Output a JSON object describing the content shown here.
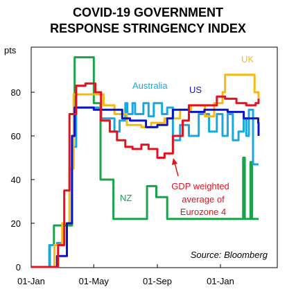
{
  "title_line1": "COVID-19 GOVERNMENT",
  "title_line2": "RESPONSE STRINGENCY INDEX",
  "chart_data": {
    "type": "line",
    "ylabel": "pts",
    "xlabel": "",
    "x_unit": "date",
    "xlim": [
      "2020-01-01",
      "2021-03-31"
    ],
    "ylim": [
      0,
      100
    ],
    "y_ticks": [
      0,
      20,
      40,
      60,
      80
    ],
    "x_ticks": [
      {
        "date": "2020-01-01",
        "label": "01-Jan"
      },
      {
        "date": "2020-05-01",
        "label": "01-May"
      },
      {
        "date": "2020-09-01",
        "label": "01-Sep"
      },
      {
        "date": "2021-01-01",
        "label": "01-Jan"
      }
    ],
    "grid": false,
    "source": "Source: Bloomberg",
    "annotations": [
      "GDP weighted",
      "average of",
      "Eurozone 4"
    ],
    "series": [
      {
        "name": "NZ",
        "color": "#1aa34a",
        "points": [
          [
            "2020-01-01",
            0
          ],
          [
            "2020-02-01",
            0
          ],
          [
            "2020-02-06",
            10
          ],
          [
            "2020-02-14",
            19
          ],
          [
            "2020-03-15",
            19
          ],
          [
            "2020-03-20",
            60
          ],
          [
            "2020-03-25",
            96
          ],
          [
            "2020-04-27",
            96
          ],
          [
            "2020-05-01",
            75
          ],
          [
            "2020-05-14",
            40
          ],
          [
            "2020-06-08",
            22
          ],
          [
            "2020-07-10",
            22
          ],
          [
            "2020-08-12",
            37
          ],
          [
            "2020-08-30",
            32
          ],
          [
            "2020-09-20",
            22
          ],
          [
            "2020-10-05",
            22
          ],
          [
            "2020-11-30",
            22
          ],
          [
            "2021-01-10",
            22
          ],
          [
            "2021-02-14",
            50
          ],
          [
            "2021-02-17",
            22
          ],
          [
            "2021-02-28",
            48
          ],
          [
            "2021-03-03",
            22
          ],
          [
            "2021-03-31",
            22
          ]
        ]
      },
      {
        "name": "Australia",
        "color": "#19a7de",
        "points": [
          [
            "2020-01-01",
            0
          ],
          [
            "2020-02-01",
            0
          ],
          [
            "2020-02-05",
            10
          ],
          [
            "2020-02-20",
            11
          ],
          [
            "2020-03-05",
            20
          ],
          [
            "2020-03-20",
            55
          ],
          [
            "2020-03-28",
            73
          ],
          [
            "2020-05-05",
            73
          ],
          [
            "2020-05-15",
            68
          ],
          [
            "2020-06-10",
            62
          ],
          [
            "2020-06-20",
            67
          ],
          [
            "2020-07-01",
            75
          ],
          [
            "2020-07-05",
            70
          ],
          [
            "2020-07-15",
            75
          ],
          [
            "2020-07-20",
            70
          ],
          [
            "2020-08-05",
            75
          ],
          [
            "2020-08-15",
            69
          ],
          [
            "2020-08-25",
            75
          ],
          [
            "2020-09-10",
            70
          ],
          [
            "2020-09-20",
            73
          ],
          [
            "2020-10-01",
            58
          ],
          [
            "2020-10-15",
            65
          ],
          [
            "2020-11-01",
            60
          ],
          [
            "2020-11-20",
            70
          ],
          [
            "2020-12-10",
            62
          ],
          [
            "2020-12-25",
            70
          ],
          [
            "2021-01-05",
            60
          ],
          [
            "2021-01-15",
            70
          ],
          [
            "2021-01-25",
            58
          ],
          [
            "2021-02-05",
            62
          ],
          [
            "2021-02-15",
            68
          ],
          [
            "2021-02-20",
            60
          ],
          [
            "2021-02-25",
            72
          ],
          [
            "2021-03-05",
            47
          ],
          [
            "2021-03-31",
            47
          ]
        ]
      },
      {
        "name": "UK",
        "color": "#f6b914",
        "points": [
          [
            "2020-01-01",
            0
          ],
          [
            "2020-02-01",
            0
          ],
          [
            "2020-02-15",
            10
          ],
          [
            "2020-03-01",
            20
          ],
          [
            "2020-03-15",
            45
          ],
          [
            "2020-03-23",
            79
          ],
          [
            "2020-05-11",
            79
          ],
          [
            "2020-05-20",
            74
          ],
          [
            "2020-06-10",
            70
          ],
          [
            "2020-07-04",
            65
          ],
          [
            "2020-08-01",
            64
          ],
          [
            "2020-08-20",
            66
          ],
          [
            "2020-09-15",
            68
          ],
          [
            "2020-10-01",
            68
          ],
          [
            "2020-10-15",
            72
          ],
          [
            "2020-11-05",
            74
          ],
          [
            "2020-12-02",
            69
          ],
          [
            "2020-12-20",
            75
          ],
          [
            "2021-01-05",
            80
          ],
          [
            "2021-01-10",
            88
          ],
          [
            "2021-02-20",
            88
          ],
          [
            "2021-03-08",
            80
          ],
          [
            "2021-03-31",
            77
          ]
        ]
      },
      {
        "name": "US",
        "color": "#0a14c8",
        "points": [
          [
            "2020-01-01",
            0
          ],
          [
            "2020-02-01",
            0
          ],
          [
            "2020-02-20",
            5
          ],
          [
            "2020-03-10",
            20
          ],
          [
            "2020-03-20",
            60
          ],
          [
            "2020-03-25",
            73
          ],
          [
            "2020-05-01",
            72
          ],
          [
            "2020-06-01",
            72
          ],
          [
            "2020-06-25",
            68
          ],
          [
            "2020-07-10",
            67
          ],
          [
            "2020-08-01",
            67
          ],
          [
            "2020-08-10",
            64
          ],
          [
            "2020-09-01",
            65
          ],
          [
            "2020-09-20",
            68
          ],
          [
            "2020-10-01",
            72
          ],
          [
            "2020-11-01",
            71
          ],
          [
            "2020-12-01",
            72
          ],
          [
            "2021-01-15",
            71
          ],
          [
            "2021-02-15",
            68
          ],
          [
            "2021-03-15",
            66
          ],
          [
            "2021-03-22",
            60
          ]
        ]
      },
      {
        "name": "GDP weighted average of Eurozone 4",
        "color": "#e8101c",
        "points": [
          [
            "2020-01-01",
            0
          ],
          [
            "2020-02-01",
            0
          ],
          [
            "2020-02-22",
            10
          ],
          [
            "2020-03-05",
            35
          ],
          [
            "2020-03-15",
            70
          ],
          [
            "2020-03-28",
            83
          ],
          [
            "2020-04-15",
            84
          ],
          [
            "2020-05-04",
            80
          ],
          [
            "2020-05-15",
            67
          ],
          [
            "2020-06-01",
            62
          ],
          [
            "2020-06-15",
            58
          ],
          [
            "2020-07-01",
            55
          ],
          [
            "2020-07-15",
            54
          ],
          [
            "2020-08-01",
            56
          ],
          [
            "2020-08-15",
            54
          ],
          [
            "2020-09-01",
            50
          ],
          [
            "2020-09-15",
            52
          ],
          [
            "2020-10-01",
            60
          ],
          [
            "2020-10-20",
            67
          ],
          [
            "2020-11-01",
            74
          ],
          [
            "2020-11-20",
            74
          ],
          [
            "2020-12-10",
            74
          ],
          [
            "2020-12-25",
            78
          ],
          [
            "2021-01-10",
            77
          ],
          [
            "2021-02-01",
            75
          ],
          [
            "2021-02-20",
            74
          ],
          [
            "2021-03-10",
            75
          ],
          [
            "2021-03-31",
            77
          ]
        ]
      }
    ]
  }
}
